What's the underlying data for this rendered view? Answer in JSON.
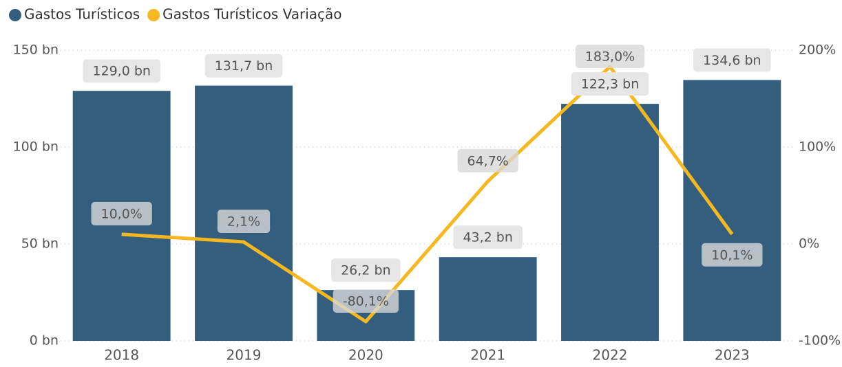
{
  "chart_data": {
    "type": "bar_line",
    "categories": [
      "2018",
      "2019",
      "2020",
      "2021",
      "2022",
      "2023"
    ],
    "series": [
      {
        "name": "Gastos Turísticos",
        "color": "#335e7e",
        "type": "bar",
        "values": [
          129.0,
          131.7,
          26.2,
          43.2,
          122.3,
          134.6
        ],
        "value_labels": [
          "129,0 bn",
          "131,7 bn",
          "26,2 bn",
          "43,2 bn",
          "122,3 bn",
          "134,6 bn"
        ]
      },
      {
        "name": "Gastos Turísticos Variação",
        "color": "#f5b820",
        "type": "line",
        "axis": "y2",
        "values": [
          10.0,
          2.1,
          -80.1,
          64.7,
          183.0,
          10.1
        ],
        "value_labels": [
          "10,0%",
          "2,1%",
          "-80,1%",
          "64,7%",
          "183,0%",
          "10,1%"
        ]
      }
    ],
    "ylim": [
      0,
      150
    ],
    "yticks": [
      {
        "value": 0,
        "label": "0 bn"
      },
      {
        "value": 50,
        "label": "50 bn"
      },
      {
        "value": 100,
        "label": "100 bn"
      },
      {
        "value": 150,
        "label": "150 bn"
      }
    ],
    "y2lim": [
      -100,
      200
    ],
    "y2ticks": [
      {
        "value": -100,
        "label": "-100%"
      },
      {
        "value": 0,
        "label": "0%"
      },
      {
        "value": 100,
        "label": "100%"
      },
      {
        "value": 200,
        "label": "200%"
      }
    ],
    "grid": true,
    "legend": "top-left"
  }
}
